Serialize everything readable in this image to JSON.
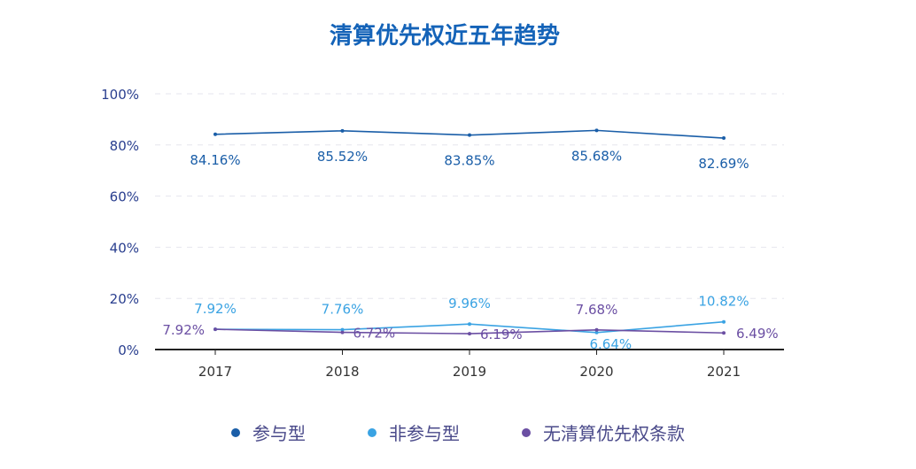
{
  "chart_data": {
    "type": "line",
    "title": "清算优先权近五年趋势",
    "categories": [
      "2017",
      "2018",
      "2019",
      "2020",
      "2021"
    ],
    "ylim": [
      0,
      100
    ],
    "yticks": [
      "0%",
      "20%",
      "40%",
      "60%",
      "80%",
      "100%"
    ],
    "grid": true,
    "legend_placement": "bottom",
    "series": [
      {
        "name": "参与型",
        "color": "#1a5ea8",
        "values": [
          84.16,
          85.52,
          83.85,
          85.68,
          82.69
        ],
        "labels": [
          "84.16%",
          "85.52%",
          "83.85%",
          "85.68%",
          "82.69%"
        ]
      },
      {
        "name": "非参与型",
        "color": "#3aa3e3",
        "values": [
          7.92,
          7.76,
          9.96,
          6.64,
          10.82
        ],
        "labels": [
          "7.92%",
          "7.76%",
          "9.96%",
          "6.64%",
          "10.82%"
        ]
      },
      {
        "name": "无清算优先权条款",
        "color": "#6b4fa3",
        "values": [
          7.92,
          6.72,
          6.19,
          7.68,
          6.49
        ],
        "labels": [
          "7.92%",
          "6.72%",
          "6.19%",
          "7.68%",
          "6.49%"
        ]
      }
    ]
  }
}
